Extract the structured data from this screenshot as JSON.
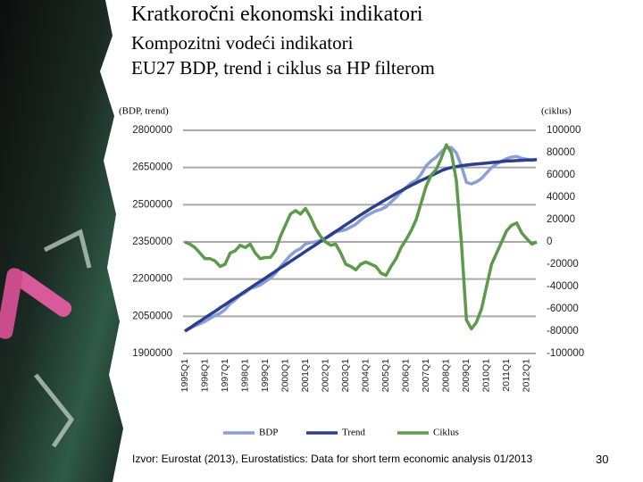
{
  "header": {
    "title": "Kratkoročni ekonomski indikatori",
    "subtitles": [
      "Kompozitni vodeći indikatori",
      "EU27 BDP, trend i ciklus sa HP filterom"
    ]
  },
  "footer": {
    "source": "Izvor: Eurostat (2013), Eurostatistics: Data for short term economic analysis 01/2013",
    "page_number": 30
  },
  "chart_data": {
    "type": "line",
    "y_label": "(BDP, trend)",
    "y2_label": "(ciklus)",
    "categories": [
      "1995Q1",
      null,
      null,
      null,
      "1996Q1",
      null,
      null,
      null,
      "1997Q1",
      null,
      null,
      null,
      "1998Q1",
      null,
      null,
      null,
      "1999Q1",
      null,
      null,
      null,
      "2000Q1",
      null,
      null,
      null,
      "2001Q1",
      null,
      null,
      null,
      "2002Q1",
      null,
      null,
      null,
      "2003Q1",
      null,
      null,
      null,
      "2004Q1",
      null,
      null,
      null,
      "2005Q1",
      null,
      null,
      null,
      "2006Q1",
      null,
      null,
      null,
      "2007Q1",
      null,
      null,
      null,
      "2008Q1",
      null,
      null,
      null,
      "2009Q1",
      null,
      null,
      null,
      "2010Q1",
      null,
      null,
      null,
      "2011Q1",
      null,
      null,
      null,
      "2012Q1",
      null,
      null
    ],
    "series": [
      {
        "name": "BDP",
        "color": "#8a9fd3",
        "values": [
          1990000,
          2001000,
          2012000,
          2020000,
          2029000,
          2042000,
          2053000,
          2062000,
          2077000,
          2101000,
          2116000,
          2134000,
          2146000,
          2162000,
          2168000,
          2176000,
          2190000,
          2204000,
          2223000,
          2250000,
          2273000,
          2296000,
          2313000,
          2323000,
          2342000,
          2347000,
          2350000,
          2357000,
          2365000,
          2376000,
          2390000,
          2395000,
          2399000,
          2410000,
          2421000,
          2439000,
          2454000,
          2465000,
          2475000,
          2481000,
          2491000,
          2511000,
          2530000,
          2551000,
          2569000,
          2588000,
          2598000,
          2623000,
          2657000,
          2677000,
          2692000,
          2713000,
          2732000,
          2730000,
          2709000,
          2657000,
          2590000,
          2584000,
          2592000,
          2606000,
          2628000,
          2650000,
          2664000,
          2676000,
          2686000,
          2692000,
          2695000,
          2687000,
          2683000,
          2679000,
          2682000
        ]
      },
      {
        "name": "Trend",
        "color": "#2c3f8e",
        "values": [
          1990000,
          2003000,
          2017000,
          2030000,
          2044000,
          2057000,
          2070000,
          2084000,
          2097000,
          2111000,
          2124000,
          2137000,
          2151000,
          2164000,
          2178000,
          2191000,
          2204000,
          2218000,
          2231000,
          2245000,
          2258000,
          2271000,
          2285000,
          2298000,
          2312000,
          2325000,
          2338000,
          2352000,
          2365000,
          2379000,
          2392000,
          2405000,
          2419000,
          2432000,
          2446000,
          2459000,
          2472000,
          2485000,
          2497000,
          2509000,
          2521000,
          2533000,
          2545000,
          2556000,
          2567000,
          2578000,
          2588000,
          2598000,
          2607000,
          2617000,
          2627000,
          2637000,
          2645000,
          2650000,
          2654000,
          2657000,
          2660000,
          2662000,
          2664000,
          2666000,
          2668000,
          2670000,
          2672000,
          2674000,
          2676000,
          2677000,
          2678000,
          2679000,
          2680000,
          2681000,
          2682000
        ]
      },
      {
        "name": "Ciklus",
        "color": "#5e9a4b",
        "axis": "y2",
        "values": [
          0,
          -2000,
          -5000,
          -10000,
          -15000,
          -15000,
          -17000,
          -22000,
          -20000,
          -10000,
          -8000,
          -3000,
          -5000,
          -2000,
          -10000,
          -15000,
          -14000,
          -14000,
          -8000,
          5000,
          15000,
          25000,
          28000,
          25000,
          30000,
          22000,
          12000,
          5000,
          0,
          -3000,
          -2000,
          -10000,
          -20000,
          -22000,
          -25000,
          -20000,
          -18000,
          -20000,
          -22000,
          -28000,
          -30000,
          -22000,
          -15000,
          -5000,
          2000,
          10000,
          20000,
          35000,
          50000,
          60000,
          65000,
          75000,
          87000,
          80000,
          55000,
          0,
          -70000,
          -78000,
          -72000,
          -60000,
          -40000,
          -20000,
          -10000,
          0,
          10000,
          15000,
          17000,
          8000,
          3000,
          -2000,
          0
        ]
      }
    ],
    "ylim": [
      1900000,
      2800000
    ],
    "yticks": [
      1900000,
      2050000,
      2200000,
      2350000,
      2500000,
      2650000,
      2800000
    ],
    "y2lim": [
      -100000,
      100000
    ],
    "y2ticks": [
      -100000,
      -80000,
      -60000,
      -40000,
      -20000,
      0,
      20000,
      40000,
      60000,
      80000,
      100000
    ],
    "grid": true,
    "legend": "bottom"
  }
}
